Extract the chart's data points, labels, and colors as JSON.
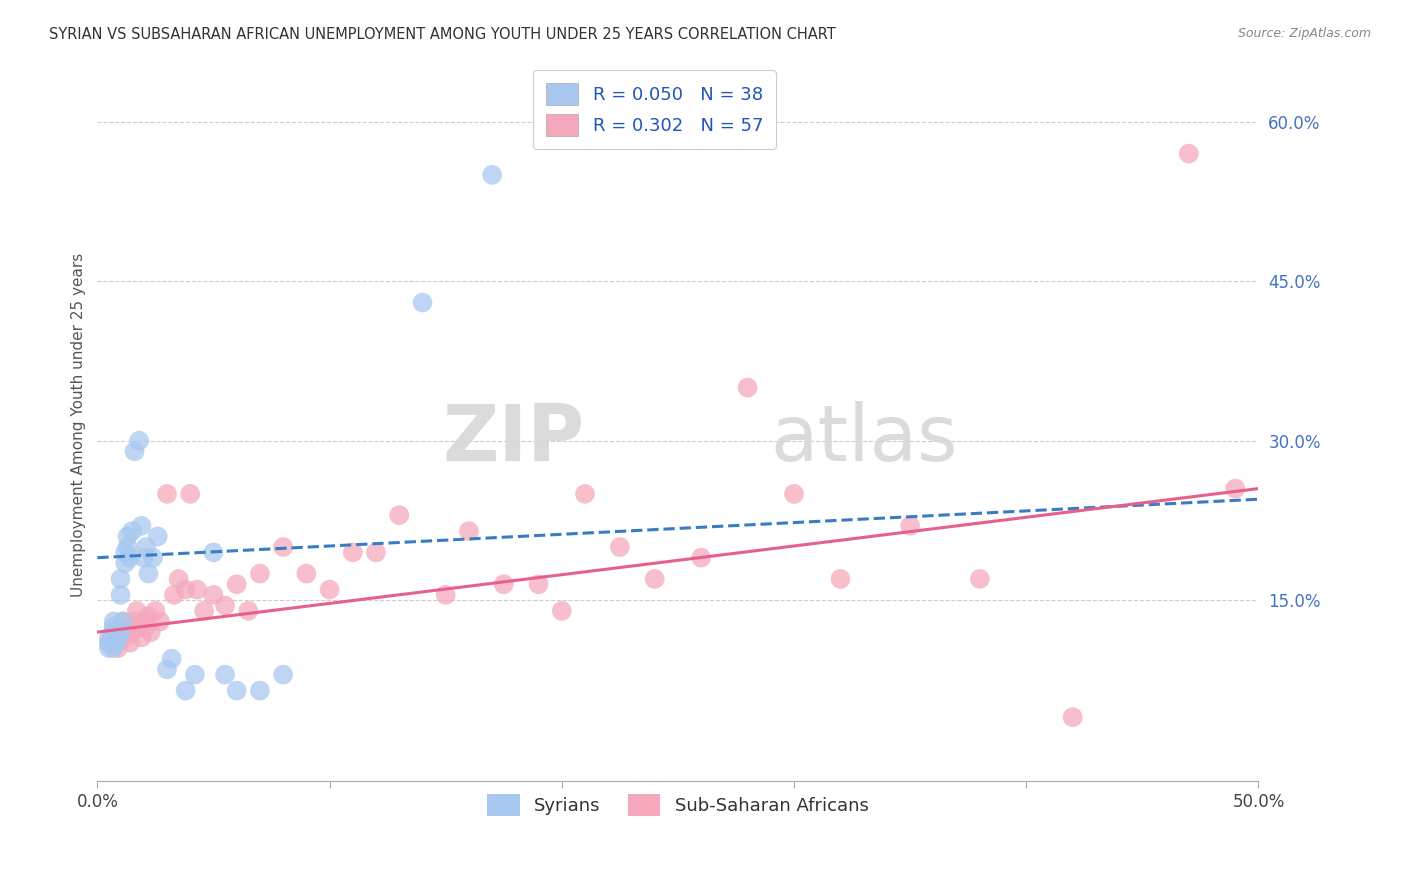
{
  "title": "SYRIAN VS SUBSAHARAN AFRICAN UNEMPLOYMENT AMONG YOUTH UNDER 25 YEARS CORRELATION CHART",
  "source": "Source: ZipAtlas.com",
  "ylabel": "Unemployment Among Youth under 25 years",
  "xlim": [
    0.0,
    0.5
  ],
  "ylim": [
    -0.02,
    0.65
  ],
  "yticks": [
    0.15,
    0.3,
    0.45,
    0.6
  ],
  "ytick_labels": [
    "15.0%",
    "30.0%",
    "45.0%",
    "60.0%"
  ],
  "xticks": [
    0.0,
    0.1,
    0.2,
    0.3,
    0.4,
    0.5
  ],
  "xtick_labels": [
    "0.0%",
    "",
    "",
    "",
    "",
    "50.0%"
  ],
  "legend_blue_label": "R = 0.050   N = 38",
  "legend_pink_label": "R = 0.302   N = 57",
  "legend_group_blue": "Syrians",
  "legend_group_pink": "Sub-Saharan Africans",
  "blue_color": "#A8C8F0",
  "pink_color": "#F5A8BC",
  "blue_line_color": "#3A7CC4",
  "pink_line_color": "#E8608A",
  "background_color": "#FFFFFF",
  "watermark_text": "ZIPatlas",
  "syrians_x": [
    0.005,
    0.005,
    0.005,
    0.007,
    0.007,
    0.007,
    0.007,
    0.008,
    0.009,
    0.01,
    0.01,
    0.01,
    0.011,
    0.012,
    0.012,
    0.013,
    0.013,
    0.014,
    0.015,
    0.016,
    0.018,
    0.019,
    0.02,
    0.021,
    0.022,
    0.024,
    0.026,
    0.03,
    0.032,
    0.038,
    0.042,
    0.05,
    0.055,
    0.06,
    0.07,
    0.08,
    0.14,
    0.17
  ],
  "syrians_y": [
    0.105,
    0.11,
    0.115,
    0.12,
    0.125,
    0.13,
    0.105,
    0.11,
    0.115,
    0.12,
    0.155,
    0.17,
    0.13,
    0.185,
    0.195,
    0.21,
    0.2,
    0.19,
    0.215,
    0.29,
    0.3,
    0.22,
    0.19,
    0.2,
    0.175,
    0.19,
    0.21,
    0.085,
    0.095,
    0.065,
    0.08,
    0.195,
    0.08,
    0.065,
    0.065,
    0.08,
    0.43,
    0.55
  ],
  "subsaharan_x": [
    0.005,
    0.006,
    0.007,
    0.008,
    0.009,
    0.01,
    0.01,
    0.011,
    0.012,
    0.013,
    0.014,
    0.015,
    0.016,
    0.017,
    0.018,
    0.019,
    0.02,
    0.021,
    0.022,
    0.023,
    0.025,
    0.027,
    0.03,
    0.033,
    0.035,
    0.038,
    0.04,
    0.043,
    0.046,
    0.05,
    0.055,
    0.06,
    0.065,
    0.07,
    0.08,
    0.09,
    0.1,
    0.11,
    0.12,
    0.13,
    0.15,
    0.16,
    0.175,
    0.19,
    0.2,
    0.21,
    0.225,
    0.24,
    0.26,
    0.28,
    0.3,
    0.32,
    0.35,
    0.38,
    0.42,
    0.47,
    0.49
  ],
  "subsaharan_y": [
    0.11,
    0.115,
    0.12,
    0.11,
    0.105,
    0.115,
    0.12,
    0.13,
    0.115,
    0.125,
    0.11,
    0.12,
    0.13,
    0.14,
    0.125,
    0.115,
    0.13,
    0.125,
    0.135,
    0.12,
    0.14,
    0.13,
    0.25,
    0.155,
    0.17,
    0.16,
    0.25,
    0.16,
    0.14,
    0.155,
    0.145,
    0.165,
    0.14,
    0.175,
    0.2,
    0.175,
    0.16,
    0.195,
    0.195,
    0.23,
    0.155,
    0.215,
    0.165,
    0.165,
    0.14,
    0.25,
    0.2,
    0.17,
    0.19,
    0.35,
    0.25,
    0.17,
    0.22,
    0.17,
    0.04,
    0.57,
    0.255
  ],
  "blue_line_x": [
    0.0,
    0.5
  ],
  "blue_line_y": [
    0.19,
    0.245
  ],
  "pink_line_x": [
    0.0,
    0.5
  ],
  "pink_line_y": [
    0.12,
    0.255
  ]
}
